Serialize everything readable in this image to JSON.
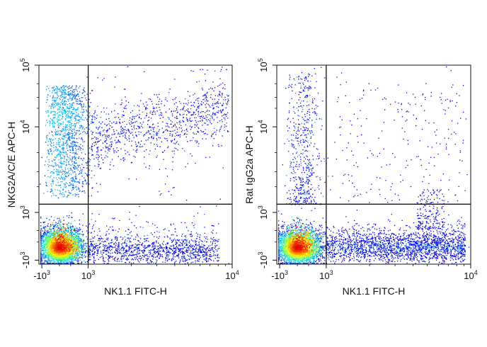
{
  "chart_data": [
    {
      "type": "scatter",
      "title": "",
      "xlabel": "NK1.1 FITC-H",
      "ylabel": "NKG2A/C/E APC-H",
      "x_scale": "biexponential",
      "y_scale": "biexponential",
      "x_ticks": [
        {
          "value": -1000,
          "base": "-10",
          "exp": "3"
        },
        {
          "value": 1000,
          "base": "10",
          "exp": "3"
        },
        {
          "value": 10000,
          "base": "10",
          "exp": "4"
        }
      ],
      "y_ticks": [
        {
          "value": -1000,
          "base": "-10",
          "exp": "3"
        },
        {
          "value": 1000,
          "base": "10",
          "exp": "3"
        },
        {
          "value": 10000,
          "base": "10",
          "exp": "4"
        },
        {
          "value": 100000,
          "base": "10",
          "exp": "5"
        }
      ],
      "gate": {
        "x": 1000,
        "y": 1250
      },
      "populations": [
        {
          "name": "double-negative",
          "x_center": -300,
          "y_center": -300,
          "density": "very high"
        },
        {
          "name": "NK1.1- NKG2A/C/E+",
          "x_range": [
            -1200,
            800
          ],
          "y_range": [
            1500,
            40000
          ],
          "density": "medium"
        },
        {
          "name": "NK1.1+ NKG2A/C/E+",
          "x_range": [
            1000,
            10000
          ],
          "y_range": [
            2000,
            80000
          ],
          "density": "medium-low"
        },
        {
          "name": "NK1.1+ NKG2A/C/E-",
          "x_range": [
            1000,
            9000
          ],
          "y_range": [
            -1000,
            1200
          ],
          "density": "medium-low"
        }
      ]
    },
    {
      "type": "scatter",
      "title": "",
      "xlabel": "NK1.1 FITC-H",
      "ylabel": "Rat IgG2a APC-H",
      "x_scale": "biexponential",
      "y_scale": "biexponential",
      "x_ticks": [
        {
          "value": -1000,
          "base": "-10",
          "exp": "3"
        },
        {
          "value": 1000,
          "base": "10",
          "exp": "3"
        },
        {
          "value": 10000,
          "base": "10",
          "exp": "4"
        }
      ],
      "y_ticks": [
        {
          "value": -1000,
          "base": "-10",
          "exp": "3"
        },
        {
          "value": 1000,
          "base": "10",
          "exp": "3"
        },
        {
          "value": 10000,
          "base": "10",
          "exp": "4"
        },
        {
          "value": 100000,
          "base": "10",
          "exp": "5"
        }
      ],
      "gate": {
        "x": 1000,
        "y": 1250
      },
      "populations": [
        {
          "name": "double-negative",
          "x_center": -300,
          "y_center": -300,
          "density": "very high"
        },
        {
          "name": "NK1.1- sparse",
          "x_range": [
            -1000,
            600
          ],
          "y_range": [
            1200,
            60000
          ],
          "density": "low"
        },
        {
          "name": "NK1.1+ IgG2a-",
          "x_range": [
            1000,
            10000
          ],
          "y_range": [
            -1000,
            1200
          ],
          "density": "medium"
        },
        {
          "name": "NK1.1+ IgG2a+",
          "x_range": [
            1000,
            10000
          ],
          "y_range": [
            1500,
            50000
          ],
          "density": "very low"
        }
      ]
    }
  ],
  "colors": {
    "axis": "#111111",
    "gate": "#111111",
    "density_low": "#0000ff",
    "density_mid": "#00e0ff",
    "density_high": "#ffff00",
    "density_peak": "#ff0000"
  }
}
